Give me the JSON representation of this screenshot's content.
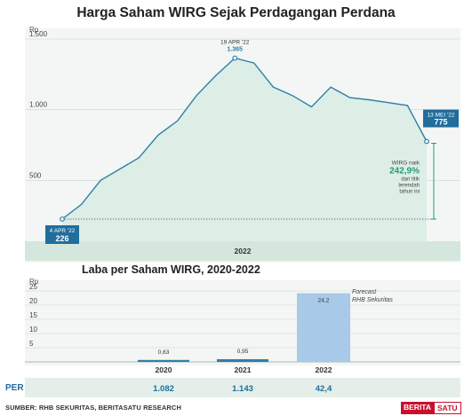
{
  "title": "Harga Saham WIRG Sejak Perdagangan Perdana",
  "chart_data": [
    {
      "type": "area",
      "title": "Harga Saham WIRG Sejak Perdagangan Perdana",
      "ylabel": "Rp",
      "xlabel": "2022",
      "ylim": [
        0,
        1500
      ],
      "yticks": [
        "500",
        "1.000",
        "1.500"
      ],
      "tick_values": [
        500,
        1000,
        1500
      ],
      "x": [
        "4 Apr 22",
        "",
        "",
        "",
        "",
        "",
        "",
        "",
        "",
        "19 Apr 22",
        "",
        "",
        "",
        "",
        "",
        "",
        "",
        "",
        "",
        "13 Mei 22"
      ],
      "values": [
        226,
        330,
        500,
        580,
        660,
        820,
        920,
        1100,
        1240,
        1365,
        1330,
        1160,
        1100,
        1020,
        1160,
        1085,
        1070,
        1050,
        1030,
        775
      ],
      "annotations": [
        {
          "date": "4 APR '22",
          "value": "226"
        },
        {
          "date": "19 APR '22",
          "value": "1.365"
        },
        {
          "date": "13 MEI '22",
          "value": "775"
        }
      ],
      "note": {
        "line1": "WIRG naik",
        "pct": "242,9%",
        "line2": "dari titik",
        "line3": "terendah",
        "line4": "tahun ini"
      }
    },
    {
      "type": "bar",
      "title": "Laba per Saham WIRG, 2020-2022",
      "ylabel": "Rp",
      "yticks": [
        "5",
        "10",
        "15",
        "20",
        "25"
      ],
      "tick_values": [
        5,
        10,
        15,
        20,
        25
      ],
      "ylim": [
        0,
        27
      ],
      "categories": [
        "2020",
        "2021",
        "2022"
      ],
      "values": [
        0.63,
        0.95,
        24.2
      ],
      "value_labels": [
        "0,63",
        "0,95",
        "24,2"
      ],
      "forecast_note": [
        "Forecast",
        "RHB Sekuritas"
      ],
      "per": {
        "label": "PER",
        "values": [
          "1.082",
          "1.143",
          "42,4"
        ]
      }
    }
  ],
  "lower_title": "Laba per Saham WIRG, 2020-2022",
  "source": "SUMBER: RHB SEKURITAS, BERITASATU RESEARCH",
  "logo": {
    "part1": "BERITA",
    "part2": "SATU"
  },
  "colors": {
    "area_fill": "#dceee6",
    "line": "#2e7fa8",
    "label_box": "#1f6e9c",
    "green": "#1f9d74",
    "bar_dark": "#2e7fa8",
    "bar_light": "#a9c9e8",
    "band": "#e4efe9"
  }
}
